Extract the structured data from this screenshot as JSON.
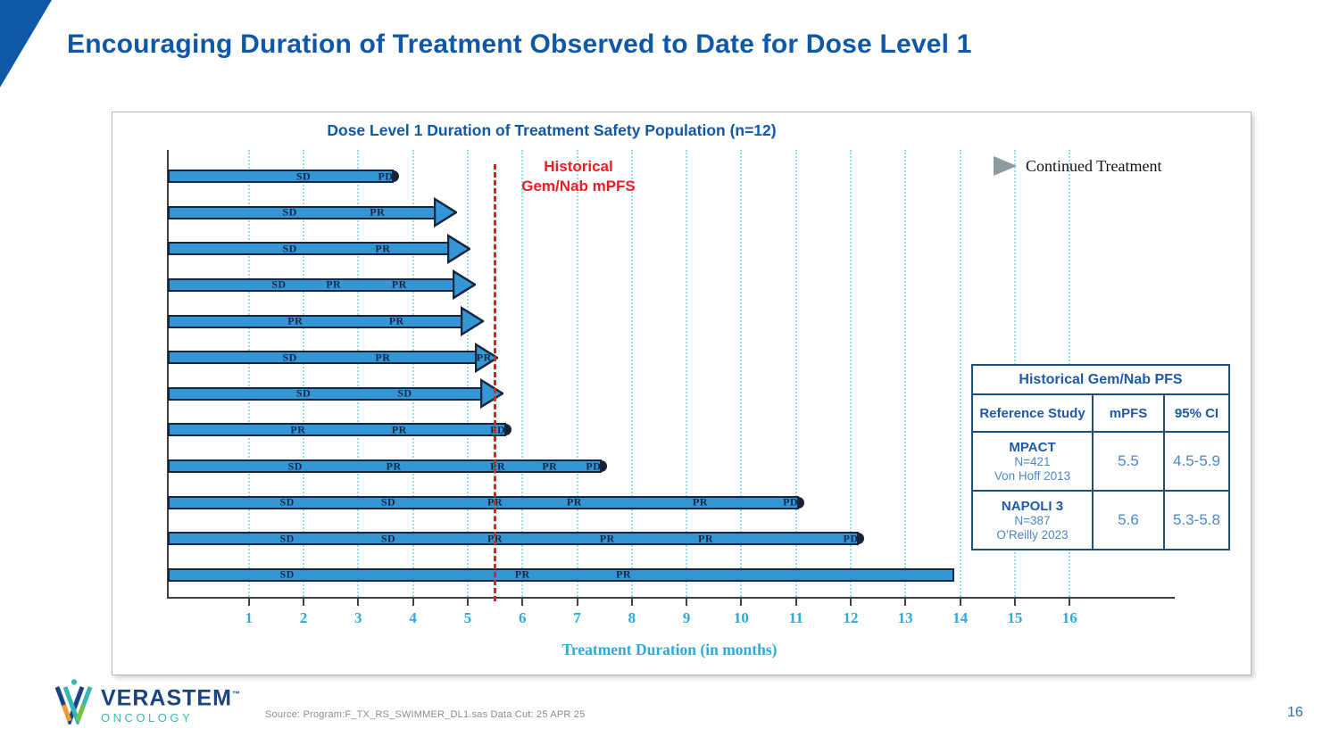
{
  "slide": {
    "title": "Encouraging Duration of Treatment Observed to Date for Dose Level 1",
    "source_note": "Source: Program:F_TX_RS_SWIMMER_DL1.sas  Data Cut: 25 APR 25",
    "page_number": "16"
  },
  "logo": {
    "name": "VERASTEM",
    "tm": "™",
    "sub": "ONCOLOGY"
  },
  "chart_data": {
    "type": "bar",
    "subtype": "swimmer-plot",
    "title": "Dose Level 1 Duration of Treatment Safety Population (n=12)",
    "xlabel": "Treatment Duration (in months)",
    "x_ticks": [
      1,
      2,
      3,
      4,
      5,
      6,
      7,
      8,
      9,
      10,
      11,
      12,
      13,
      14,
      15,
      16
    ],
    "xlim": [
      0,
      17
    ],
    "grid": true,
    "n_subjects": 12,
    "reference_line": {
      "value": 5.5,
      "label_lines": [
        "Historical",
        "Gem/Nab mPFS"
      ],
      "color": "#ea1c24"
    },
    "legend": {
      "label": "Continued Treatment",
      "marker": "right-arrow",
      "position": "top-right"
    },
    "bars": [
      {
        "end": 3.65,
        "end_type": "pd",
        "labels": [
          {
            "t": "SD",
            "m": 2.0
          },
          {
            "t": "PD",
            "m": 3.5
          }
        ]
      },
      {
        "end": 4.8,
        "end_type": "arrow",
        "labels": [
          {
            "t": "SD",
            "m": 1.75
          },
          {
            "t": "PR",
            "m": 3.35
          }
        ]
      },
      {
        "end": 5.05,
        "end_type": "arrow",
        "labels": [
          {
            "t": "SD",
            "m": 1.75
          },
          {
            "t": "PR",
            "m": 3.45
          }
        ]
      },
      {
        "end": 5.15,
        "end_type": "arrow",
        "labels": [
          {
            "t": "SD",
            "m": 1.55
          },
          {
            "t": "PR",
            "m": 2.55
          },
          {
            "t": "PR",
            "m": 3.75
          }
        ]
      },
      {
        "end": 5.3,
        "end_type": "arrow",
        "labels": [
          {
            "t": "PR",
            "m": 1.85
          },
          {
            "t": "PR",
            "m": 3.7
          }
        ]
      },
      {
        "end": 5.55,
        "end_type": "arrow",
        "labels": [
          {
            "t": "SD",
            "m": 1.75
          },
          {
            "t": "PR",
            "m": 3.45
          },
          {
            "t": "PR",
            "m": 5.3
          }
        ]
      },
      {
        "end": 5.65,
        "end_type": "arrow",
        "labels": [
          {
            "t": "SD",
            "m": 2.0
          },
          {
            "t": "SD",
            "m": 3.85
          }
        ]
      },
      {
        "end": 5.7,
        "end_type": "pd",
        "labels": [
          {
            "t": "PR",
            "m": 1.9
          },
          {
            "t": "PR",
            "m": 3.75
          },
          {
            "t": "PD",
            "m": 5.55
          }
        ]
      },
      {
        "end": 7.45,
        "end_type": "pd",
        "labels": [
          {
            "t": "SD",
            "m": 1.85
          },
          {
            "t": "PR",
            "m": 3.65
          },
          {
            "t": "PR",
            "m": 5.55
          },
          {
            "t": "PR",
            "m": 6.5
          },
          {
            "t": "PD",
            "m": 7.3
          }
        ]
      },
      {
        "end": 11.05,
        "end_type": "pd",
        "labels": [
          {
            "t": "SD",
            "m": 1.7
          },
          {
            "t": "SD",
            "m": 3.55
          },
          {
            "t": "PR",
            "m": 5.5
          },
          {
            "t": "PR",
            "m": 6.95
          },
          {
            "t": "PR",
            "m": 9.25
          },
          {
            "t": "PD",
            "m": 10.9
          }
        ]
      },
      {
        "end": 12.15,
        "end_type": "pd",
        "labels": [
          {
            "t": "SD",
            "m": 1.7
          },
          {
            "t": "SD",
            "m": 3.55
          },
          {
            "t": "PR",
            "m": 5.5
          },
          {
            "t": "PR",
            "m": 7.55
          },
          {
            "t": "PR",
            "m": 9.35
          },
          {
            "t": "PD",
            "m": 12.0
          }
        ]
      },
      {
        "end": 13.9,
        "end_type": "flat",
        "labels": [
          {
            "t": "SD",
            "m": 1.7
          },
          {
            "t": "PR",
            "m": 6.0
          },
          {
            "t": "PR",
            "m": 7.85
          }
        ]
      }
    ]
  },
  "ref_table": {
    "title": "Historical Gem/Nab PFS",
    "col_headers": [
      "Reference Study",
      "mPFS",
      "95% CI"
    ],
    "rows": [
      {
        "study_name": "MPACT",
        "study_n": "N=421",
        "study_cite": "Von Hoff 2013",
        "mpfs": "5.5",
        "ci": "4.5-5.9"
      },
      {
        "study_name": "NAPOLI 3",
        "study_n": "N=387",
        "study_cite": "O’Reilly 2023",
        "mpfs": "5.6",
        "ci": "5.3-5.8"
      }
    ]
  },
  "colors": {
    "accent_blue": "#0f58a8",
    "bar_fill": "#3596d5",
    "bar_border": "#17253f",
    "grid_cyan": "#90dcf5",
    "tick_cyan": "#29abe2",
    "red": "#ea1c24",
    "table_border": "#1f4e79",
    "table_header": "#1f5aa8",
    "table_value": "#4a89c8",
    "logo_navy": "#1b4283",
    "logo_teal": "#35b8b4",
    "legend_gray": "#8d9b9e"
  }
}
